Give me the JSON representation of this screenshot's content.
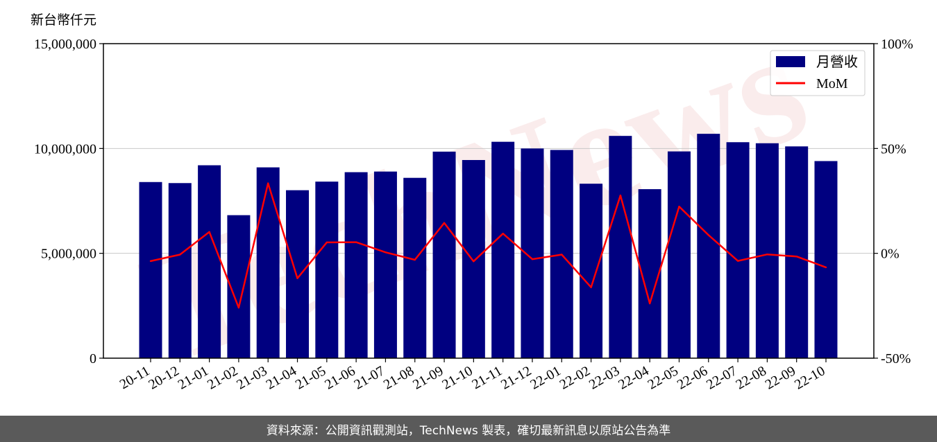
{
  "chart_data": {
    "type": "bar",
    "y_unit_label": "新台幣仟元",
    "categories": [
      "20-11",
      "20-12",
      "21-01",
      "21-02",
      "21-03",
      "21-04",
      "21-05",
      "21-06",
      "21-07",
      "21-08",
      "21-09",
      "21-10",
      "21-11",
      "21-12",
      "22-01",
      "22-02",
      "22-03",
      "22-04",
      "22-05",
      "22-06",
      "22-07",
      "22-08",
      "22-09",
      "22-10"
    ],
    "series": [
      {
        "name": "月營收",
        "axis": "left",
        "kind": "bar",
        "color": "#000080",
        "values": [
          8400000,
          8350000,
          9200000,
          6820000,
          9100000,
          8010000,
          8420000,
          8870000,
          8900000,
          8600000,
          9850000,
          9450000,
          10320000,
          10000000,
          9930000,
          8320000,
          10600000,
          8060000,
          9860000,
          10700000,
          10300000,
          10250000,
          10100000,
          9400000
        ]
      },
      {
        "name": "MoM",
        "axis": "right",
        "kind": "line",
        "color": "#ff0000",
        "values": [
          -3.7,
          -0.6,
          10.2,
          -25.9,
          33.4,
          -11.9,
          5.2,
          5.3,
          0.5,
          -3.1,
          14.5,
          -3.8,
          9.4,
          -2.8,
          -0.6,
          -16.2,
          27.6,
          -23.9,
          22.3,
          8.7,
          -3.6,
          -0.5,
          -1.5,
          -6.7
        ]
      }
    ],
    "left_axis": {
      "ylim": [
        0,
        15000000
      ],
      "ticks": [
        0,
        5000000,
        10000000,
        15000000
      ],
      "tick_labels": [
        "0",
        "5,000,000",
        "10,000,000",
        "15,000,000"
      ]
    },
    "right_axis": {
      "ylim": [
        -50,
        100
      ],
      "ticks": [
        -50,
        0,
        50,
        100
      ],
      "tick_labels": [
        "-50%",
        "0%",
        "50%",
        "100%"
      ]
    },
    "grid": "horizontal",
    "legend_position": "top-right",
    "watermark": "TechNews"
  },
  "footer": {
    "source_text": "資料來源：公開資訊觀測站，TechNews 製表，確切最新訊息以原站公告為準"
  }
}
